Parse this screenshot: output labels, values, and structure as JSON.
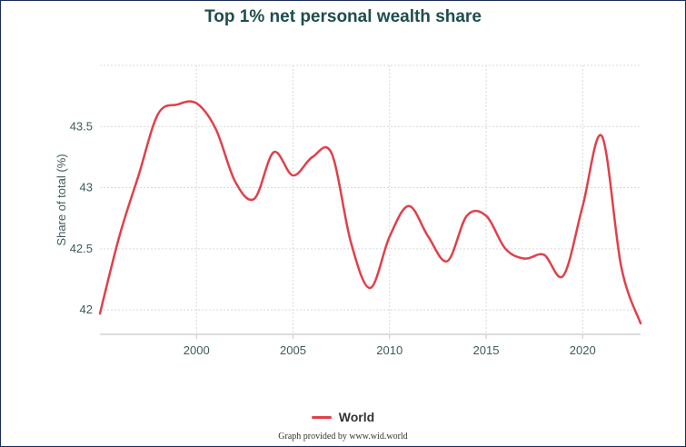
{
  "title": "Top 1% net personal wealth share",
  "credit": "Graph provided by www.wid.world",
  "colors": {
    "series": "#e0404a",
    "grid": "#d9d9d9",
    "text": "#3f5a5a",
    "title": "#1f4d4d"
  },
  "chart_data": {
    "type": "line",
    "title": "Top 1% net personal wealth share",
    "ylabel": "Share of total (%)",
    "xlabel": "",
    "xlim": [
      1995,
      2023
    ],
    "ylim": [
      41.8,
      44.0
    ],
    "x_ticks": [
      2000,
      2005,
      2010,
      2015,
      2020
    ],
    "y_ticks": [
      42,
      42.5,
      43,
      43.5
    ],
    "y_tick_labels": [
      "42",
      "42.5",
      "43",
      "43.5"
    ],
    "grid": true,
    "legend_position": "bottom",
    "series": [
      {
        "name": "World",
        "color": "#e0404a",
        "x": [
          1995,
          1996,
          1997,
          1998,
          1999,
          2000,
          2001,
          2002,
          2003,
          2004,
          2005,
          2006,
          2007,
          2008,
          2009,
          2010,
          2011,
          2012,
          2013,
          2014,
          2015,
          2016,
          2017,
          2018,
          2019,
          2020,
          2021,
          2022,
          2023
        ],
        "y": [
          41.97,
          42.6,
          43.1,
          43.6,
          43.68,
          43.69,
          43.48,
          43.05,
          42.91,
          43.29,
          43.1,
          43.25,
          43.28,
          42.55,
          42.18,
          42.6,
          42.85,
          42.6,
          42.4,
          42.77,
          42.77,
          42.5,
          42.42,
          42.45,
          42.28,
          42.85,
          43.42,
          42.35,
          41.89
        ]
      }
    ]
  }
}
